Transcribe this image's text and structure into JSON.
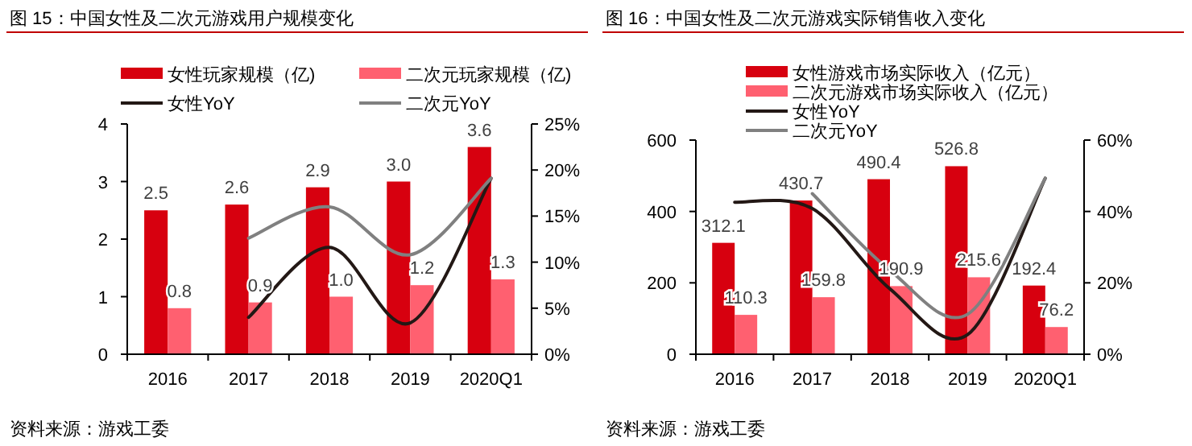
{
  "chart_data": [
    {
      "type": "bar",
      "title": "图 15：中国女性及二次元游戏用户规模变化",
      "categories": [
        "2016",
        "2017",
        "2018",
        "2019",
        "2020Q1"
      ],
      "series": [
        {
          "name": "女性玩家规模（亿)",
          "color": "#d7000f",
          "values": [
            2.5,
            2.6,
            2.9,
            3.0,
            3.6
          ],
          "value_labels": [
            "2.5",
            "2.6",
            "2.9",
            "3.0",
            "3.6"
          ]
        },
        {
          "name": "二次元玩家规模（亿)",
          "color": "#ff6070",
          "values": [
            0.8,
            0.9,
            1.0,
            1.2,
            1.3
          ],
          "value_labels": [
            "0.8",
            "0.9",
            "1.0",
            "1.2",
            "1.3"
          ]
        },
        {
          "name": "女性YoY",
          "type": "line",
          "axis": "y2",
          "color": "#231815",
          "values": [
            null,
            4.0,
            11.6,
            3.4,
            19.1
          ]
        },
        {
          "name": "二次元YoY",
          "type": "line",
          "axis": "y2",
          "color": "#808080",
          "values": [
            null,
            12.6,
            16.0,
            10.8,
            19.1
          ]
        }
      ],
      "ylim": [
        0,
        4
      ],
      "yticks": [
        0,
        1,
        2,
        3,
        4
      ],
      "y2lim": [
        0,
        25
      ],
      "y2ticks": [
        {
          "value": 0,
          "label": "0%"
        },
        {
          "value": 5,
          "label": "5%"
        },
        {
          "value": 10,
          "label": "10%"
        },
        {
          "value": 15,
          "label": "15%"
        },
        {
          "value": 20,
          "label": "20%"
        },
        {
          "value": 25,
          "label": "25%"
        }
      ],
      "legend": "top",
      "grid": false,
      "annotations": [
        "资料来源：游戏工委"
      ]
    },
    {
      "type": "bar",
      "title": "图 16：中国女性及二次元游戏实际销售收入变化",
      "categories": [
        "2016",
        "2017",
        "2018",
        "2019",
        "2020Q1"
      ],
      "series": [
        {
          "name": "女性游戏市场实际收入（亿元）",
          "color": "#d7000f",
          "values": [
            312.1,
            430.7,
            490.4,
            526.8,
            192.4
          ],
          "value_labels": [
            "312.1",
            "430.7",
            "490.4",
            "526.8",
            "192.4"
          ]
        },
        {
          "name": "二次元游戏市场实际收入（亿元）",
          "color": "#ff6070",
          "values": [
            110.3,
            159.8,
            190.9,
            215.6,
            76.2
          ],
          "value_labels": [
            "110.3",
            "159.8",
            "190.9",
            "215.6",
            "76.2"
          ]
        },
        {
          "name": "女性YoY",
          "type": "line",
          "axis": "y2",
          "color": "#231815",
          "values": [
            42.6,
            40.8,
            18.3,
            5.5,
            49.3
          ]
        },
        {
          "name": "二次元YoY",
          "type": "line",
          "axis": "y2",
          "color": "#808080",
          "values": [
            null,
            45.0,
            23.5,
            11.2,
            49.3
          ]
        }
      ],
      "ylim": [
        0,
        600
      ],
      "yticks": [
        0,
        200,
        400,
        600
      ],
      "y2lim": [
        0,
        60
      ],
      "y2ticks": [
        {
          "value": 0,
          "label": "0%"
        },
        {
          "value": 20,
          "label": "20%"
        },
        {
          "value": 40,
          "label": "40%"
        },
        {
          "value": 60,
          "label": "60%"
        }
      ],
      "legend": "top",
      "grid": false,
      "annotations": [
        "资料来源：游戏工委"
      ]
    }
  ]
}
